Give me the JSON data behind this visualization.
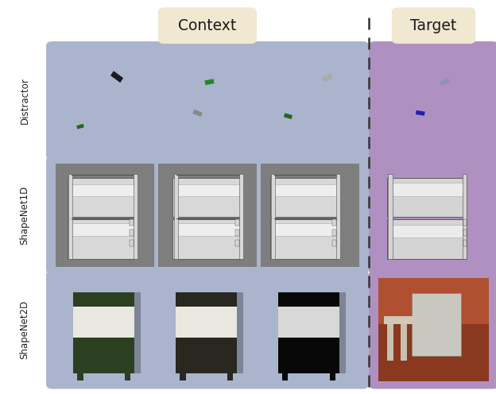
{
  "context_label": "Context",
  "target_label": "Target",
  "row_labels": [
    "Distractor",
    "ShapeNet1D",
    "ShapeNet2D"
  ],
  "context_bg": "#aab4cc",
  "target_bg": "#b090c0",
  "label_box_bg": "#f0e8d0",
  "figure_bg": "#ffffff",
  "dashed_line_color": "#333333",
  "row_label_color": "#222222",
  "n_context_cols": 3,
  "n_rows": 3,
  "distractor_bg": "#f0f0f0",
  "shapenet1d_bg": "#808080",
  "shapenet2d_ctx0_bg": "#6a8040",
  "shapenet2d_ctx1_bg": "#b0b870",
  "shapenet2d_ctx2_bg": "#303030",
  "shapenet2d_tgt_bg": "#7a3020"
}
